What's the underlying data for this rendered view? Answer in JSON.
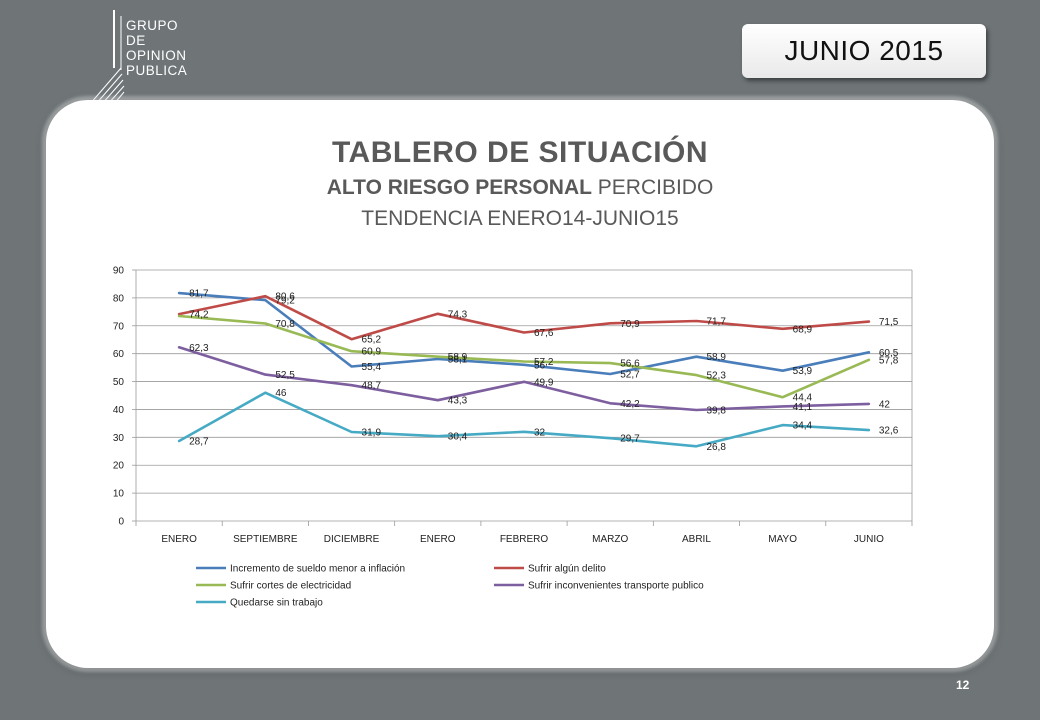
{
  "logo": {
    "lines": [
      "GRUPO",
      "DE",
      "OPINION",
      "PUBLICA"
    ]
  },
  "date_badge": "JUNIO 2015",
  "title": {
    "main": "TABLERO DE SITUACIÓN",
    "sub_bold": "ALTO RIESGO PERSONAL",
    "sub_rest": " PERCIBIDO",
    "sub2": "TENDENCIA ENERO14-JUNIO15"
  },
  "page_number": "12",
  "colors": {
    "line_series_1": "#4a7ebb",
    "line_series_2": "#be4b48",
    "line_series_3": "#98b954",
    "line_series_4": "#7d5fa0",
    "line_series_5": "#46aac5"
  },
  "chart_data": {
    "type": "line",
    "categories": [
      "ENERO",
      "SEPTIEMBRE",
      "DICIEMBRE",
      "ENERO",
      "FEBRERO",
      "MARZO",
      "ABRIL",
      "MAYO",
      "JUNIO"
    ],
    "ylim": [
      0,
      90
    ],
    "yticks": [
      0,
      10,
      20,
      30,
      40,
      50,
      60,
      70,
      80,
      90
    ],
    "grid": true,
    "legend": "bottom",
    "series": [
      {
        "name": "Incremento de sueldo menor a inflación",
        "color": "#4a7ebb",
        "values": [
          81.7,
          79.2,
          55.4,
          58.1,
          56,
          52.7,
          58.9,
          53.9,
          60.5
        ],
        "labels": [
          "81,7",
          "79,2",
          "55,4",
          "58,1",
          "56",
          "52,7",
          "58,9",
          "53,9",
          "60,5"
        ]
      },
      {
        "name": "Sufrir algún delito",
        "color": "#be4b48",
        "values": [
          74.2,
          80.6,
          65.2,
          74.3,
          67.6,
          70.9,
          71.7,
          68.9,
          71.5
        ],
        "labels": [
          "74,2",
          "80,6",
          "65,2",
          "74,3",
          "67,6",
          "70,9",
          "71,7",
          "68,9",
          "71,5"
        ]
      },
      {
        "name": "Sufrir cortes de electricidad",
        "color": "#98b954",
        "values": [
          73.5,
          70.8,
          60.9,
          58.9,
          57.2,
          56.6,
          52.3,
          44.4,
          57.8
        ],
        "labels": [
          "",
          "70,8",
          "60,9",
          "58,9",
          "57,2",
          "56,6",
          "52,3",
          "44,4",
          "57,8"
        ]
      },
      {
        "name": "Sufrir inconvenientes transporte publico",
        "color": "#7d5fa0",
        "values": [
          62.3,
          52.5,
          48.7,
          43.3,
          49.9,
          42.2,
          39.8,
          41.1,
          42
        ],
        "labels": [
          "62,3",
          "52,5",
          "48,7",
          "43,3",
          "49,9",
          "42,2",
          "39,8",
          "41,1",
          "42"
        ]
      },
      {
        "name": "Quedarse sin trabajo",
        "color": "#46aac5",
        "values": [
          28.7,
          46,
          31.9,
          30.4,
          32,
          29.7,
          26.8,
          34.4,
          32.6
        ],
        "labels": [
          "28,7",
          "46",
          "31,9",
          "30,4",
          "32",
          "29,7",
          "26,8",
          "34,4",
          "32,6"
        ]
      }
    ]
  }
}
